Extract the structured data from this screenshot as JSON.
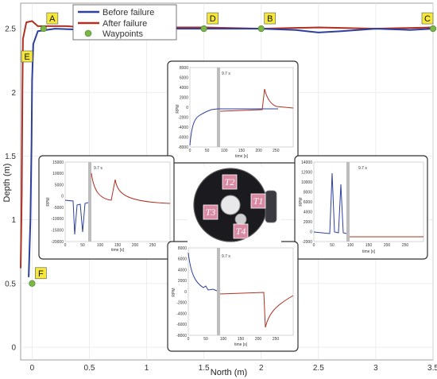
{
  "chart_data": {
    "type": "line",
    "xlabel": "North (m)",
    "ylabel": "Depth (m)",
    "xlim": [
      -0.1,
      3.5
    ],
    "ylim": [
      -0.1,
      2.7
    ],
    "x_ticks": [
      "0",
      "0.5",
      "1",
      "1.5",
      "2",
      "2.5",
      "3",
      "3.5"
    ],
    "y_ticks": [
      "0",
      "0.5",
      "1",
      "1.5",
      "2",
      "2.5"
    ],
    "legend": {
      "position": "top-left"
    },
    "series": [
      {
        "name": "Before failure",
        "color": "#2e3f9e",
        "points": [
          [
            -0.03,
            0.55
          ],
          [
            -0.015,
            1.0
          ],
          [
            -0.005,
            1.6
          ],
          [
            0.0,
            2.1
          ],
          [
            0.01,
            2.38
          ],
          [
            0.05,
            2.48
          ],
          [
            0.2,
            2.5
          ],
          [
            0.5,
            2.49
          ],
          [
            1.0,
            2.5
          ],
          [
            1.5,
            2.5
          ],
          [
            2.0,
            2.5
          ],
          [
            2.3,
            2.49
          ],
          [
            2.5,
            2.47
          ],
          [
            2.7,
            2.48
          ],
          [
            3.0,
            2.5
          ],
          [
            3.3,
            2.49
          ],
          [
            3.5,
            2.5
          ]
        ]
      },
      {
        "name": "After failure",
        "color": "#b03024",
        "points": [
          [
            -0.1,
            0.62
          ],
          [
            -0.09,
            1.2
          ],
          [
            -0.085,
            2.0
          ],
          [
            -0.08,
            2.42
          ],
          [
            -0.05,
            2.55
          ],
          [
            0.0,
            2.56
          ],
          [
            0.05,
            2.52
          ],
          [
            0.3,
            2.52
          ],
          [
            0.6,
            2.5
          ],
          [
            1.0,
            2.51
          ],
          [
            1.5,
            2.51
          ],
          [
            2.0,
            2.5
          ],
          [
            2.5,
            2.51
          ],
          [
            3.0,
            2.5
          ],
          [
            3.5,
            2.51
          ]
        ]
      },
      {
        "name": "Waypoints",
        "color": "#7ab648",
        "points": [
          [
            0.0,
            0.5
          ],
          [
            0.1,
            2.5
          ],
          [
            1.5,
            2.5
          ],
          [
            2.0,
            2.5
          ],
          [
            3.5,
            2.5
          ]
        ],
        "labels": [
          "F",
          "A",
          "D",
          "B",
          "C"
        ]
      }
    ],
    "annotations": [
      "E"
    ],
    "inset_panels": {
      "time_label": "time [s]",
      "rpm_label": "RPM",
      "delay_label": "9.7 s",
      "top": {
        "y_ticks": [
          "-8000",
          "-6000",
          "-4000",
          "-2000",
          "0",
          "2000",
          "4000",
          "6000",
          "8000"
        ],
        "x_ticks": [
          "0",
          "50",
          "100",
          "150",
          "200",
          "250"
        ]
      },
      "left": {
        "y_ticks": [
          "-20000",
          "-15000",
          "-10000",
          "-5000",
          "0",
          "5000",
          "10000",
          "15000"
        ],
        "x_ticks": [
          "0",
          "50",
          "100",
          "150",
          "200",
          "250"
        ]
      },
      "right": {
        "y_ticks": [
          "-2000",
          "0",
          "2000",
          "4000",
          "6000",
          "8000",
          "10000",
          "12000",
          "14000"
        ],
        "x_ticks": [
          "0",
          "50",
          "100",
          "150",
          "200",
          "250"
        ]
      },
      "bottom": {
        "y_ticks": [
          "-8000",
          "-6000",
          "-4000",
          "-2000",
          "0",
          "2000",
          "4000",
          "6000",
          "8000"
        ],
        "x_ticks": [
          "0",
          "50",
          "100",
          "150",
          "200",
          "250"
        ]
      }
    },
    "thrusters": [
      "T1",
      "T2",
      "T3",
      "T4"
    ]
  }
}
